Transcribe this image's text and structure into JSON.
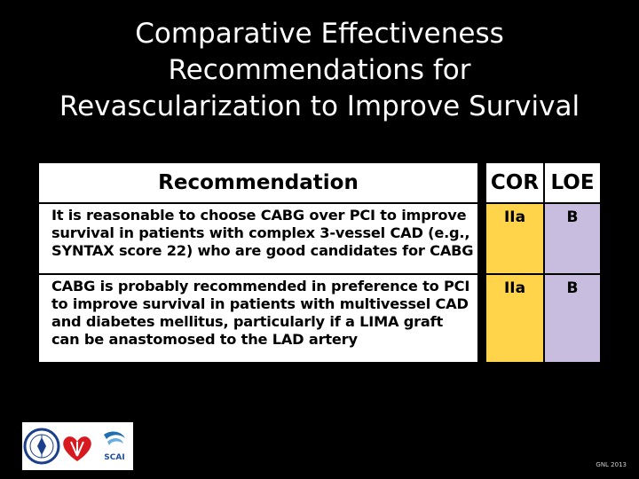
{
  "title": {
    "line1": "Comparative Effectiveness",
    "line2": "Recommendations for",
    "line3": "Revascularization to Improve Survival"
  },
  "table": {
    "headers": {
      "recommendation": "Recommendation",
      "cor": "COR",
      "loe": "LOE"
    },
    "rows": [
      {
        "text": "It is reasonable to choose CABG over PCI to improve survival in patients with complex 3-vessel CAD (e.g., SYNTAX score 22) who are good candidates for CABG",
        "cor": "IIa",
        "loe": "B"
      },
      {
        "text": "CABG is probably recommended in preference to PCI to improve survival in patients with multivessel CAD and diabetes mellitus, particularly if a LIMA graft can be anastomosed to the LAD artery",
        "cor": "IIa",
        "loe": "B"
      }
    ]
  },
  "colors": {
    "cor": "#ffd34a",
    "loe": "#c9bddf",
    "background": "#000000"
  },
  "logos": [
    "acc-seal-logo",
    "aha-heart-logo",
    "scai-logo"
  ],
  "footer": {
    "text": "GNL 2013"
  }
}
